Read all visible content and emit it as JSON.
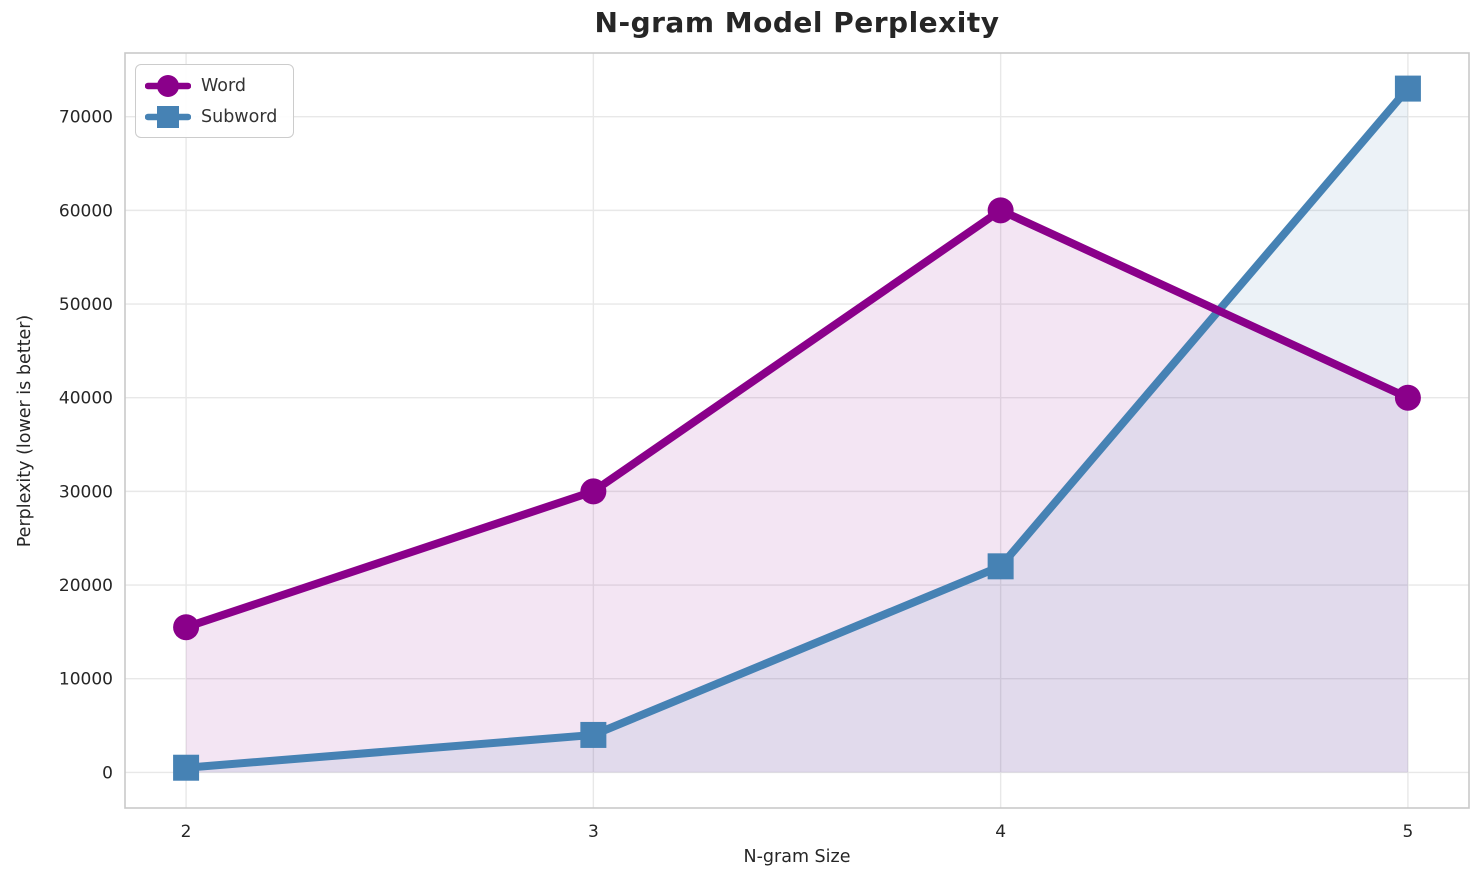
{
  "chart_data": {
    "type": "line",
    "title": "N-gram Model Perplexity",
    "xlabel": "N-gram Size",
    "ylabel": "Perplexity (lower is better)",
    "x": [
      2,
      3,
      4,
      5
    ],
    "series": [
      {
        "name": "Word",
        "marker": "circle",
        "color": "#8A008A",
        "values": [
          15500,
          30000,
          60000,
          40000
        ]
      },
      {
        "name": "Subword",
        "marker": "square",
        "color": "#4682B4",
        "values": [
          500,
          4000,
          22000,
          73000
        ]
      }
    ],
    "xticks": [
      "2",
      "3",
      "4",
      "5"
    ],
    "xtick_values": [
      2,
      3,
      4,
      5
    ],
    "yticks": [
      "0",
      "10000",
      "20000",
      "30000",
      "40000",
      "50000",
      "60000",
      "70000"
    ],
    "ytick_values": [
      0,
      10000,
      20000,
      30000,
      40000,
      50000,
      60000,
      70000
    ],
    "xlim": [
      1.85,
      5.15
    ],
    "ylim": [
      -3800,
      76800
    ],
    "grid": true,
    "fill_to_zero": true,
    "fill_alpha": 0.1,
    "legend_position": "upper-left",
    "colors": {
      "grid": "#e8e8e8",
      "spine": "#c9c9c9",
      "text": "#262626",
      "background": "#ffffff"
    }
  }
}
